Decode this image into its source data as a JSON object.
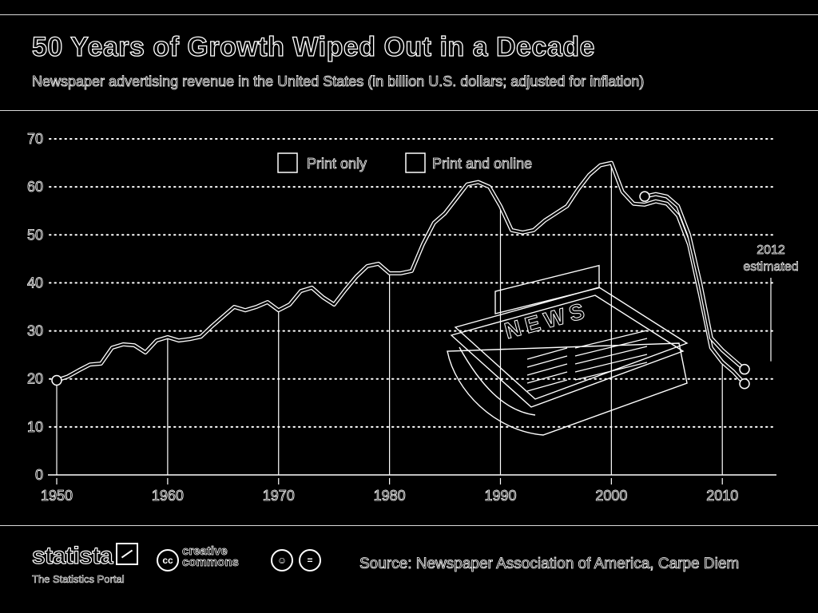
{
  "header": {
    "title": "50 Years of Growth Wiped Out in a Decade",
    "subtitle": "Newspaper advertising revenue in the United States (in billion U.S. dollars; adjusted for inflation)"
  },
  "chart_data": {
    "type": "line",
    "ylim": [
      0,
      70
    ],
    "xlim": [
      1950,
      2012
    ],
    "y_ticks": [
      "0",
      "10",
      "20",
      "30",
      "40",
      "50",
      "60",
      "70"
    ],
    "x_ticks": [
      "1950",
      "1960",
      "1970",
      "1980",
      "1990",
      "2000",
      "2010"
    ],
    "grid": true,
    "legend_position": "top-center",
    "annotation": [
      "2012",
      "estimated"
    ],
    "series": [
      {
        "name": "Print only",
        "color": "#ffffff",
        "x": [
          1950,
          1951,
          1952,
          1953,
          1954,
          1955,
          1956,
          1957,
          1958,
          1959,
          1960,
          1961,
          1962,
          1963,
          1964,
          1965,
          1966,
          1967,
          1968,
          1969,
          1970,
          1971,
          1972,
          1973,
          1974,
          1975,
          1976,
          1977,
          1978,
          1979,
          1980,
          1981,
          1982,
          1983,
          1984,
          1985,
          1986,
          1987,
          1988,
          1989,
          1990,
          1991,
          1992,
          1993,
          1994,
          1995,
          1996,
          1997,
          1998,
          1999,
          2000,
          2001,
          2002,
          2003,
          2004,
          2005,
          2006,
          2007,
          2008,
          2009,
          2010,
          2011,
          2012
        ],
        "values": [
          19.7,
          20.5,
          21.8,
          23.0,
          23.2,
          26.5,
          27.2,
          27.0,
          25.5,
          28.0,
          28.7,
          28.0,
          28.3,
          28.8,
          31.0,
          33.0,
          35.0,
          34.3,
          35.0,
          36.0,
          34.3,
          35.5,
          38.3,
          39.0,
          37.0,
          35.5,
          38.5,
          41.3,
          43.5,
          44.0,
          42.0,
          42.0,
          42.5,
          48.0,
          52.5,
          54.5,
          57.5,
          60.5,
          61.0,
          60.0,
          56.0,
          51.0,
          50.5,
          51.0,
          53.0,
          54.5,
          56.0,
          59.5,
          62.5,
          64.5,
          65.0,
          59.0,
          56.5,
          56.3,
          57.0,
          56.5,
          54.0,
          48.0,
          37.5,
          26.5,
          23.5,
          21.5,
          19.0
        ]
      },
      {
        "name": "Print and online",
        "color": "#ffffff",
        "x": [
          2003,
          2004,
          2005,
          2006,
          2007,
          2008,
          2009,
          2010,
          2011,
          2012
        ],
        "values": [
          58.0,
          58.5,
          58.0,
          56.0,
          50.0,
          40.0,
          28.5,
          26.0,
          24.0,
          22.0
        ]
      }
    ]
  },
  "footer": {
    "brand": "statista",
    "tagline": "The Statistics Portal",
    "cc_mark": "cc",
    "cc_text_1": "creative",
    "cc_text_2": "commons",
    "source": "Source: Newspaper Association of America, Carpe Diem"
  },
  "illustration": {
    "newspaper_headline": "NEWS"
  }
}
